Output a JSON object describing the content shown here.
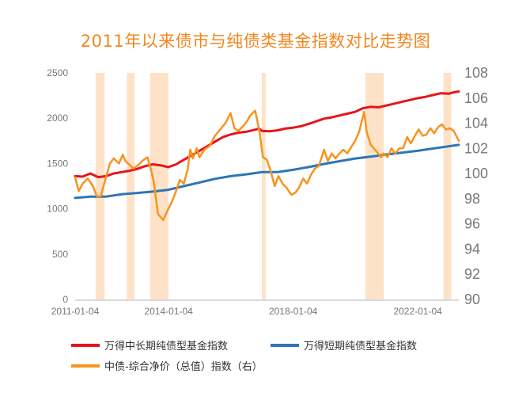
{
  "chart_data": {
    "type": "line",
    "title": "2011年以来债市与纯债类基金指数对比走势图",
    "x_ticks": [
      "2011-01-04",
      "2014-01-04",
      "2018-01-04",
      "2022-01-04"
    ],
    "x_range": [
      "2011-01-04",
      "2023-04-30"
    ],
    "y_left": {
      "ylim": [
        0,
        2500
      ],
      "ticks": [
        0,
        500,
        1000,
        1500,
        2000,
        2500
      ]
    },
    "y_right": {
      "ylim": [
        90,
        108
      ],
      "ticks": [
        90,
        92,
        94,
        96,
        98,
        100,
        102,
        104,
        106,
        108
      ]
    },
    "grid": false,
    "legend_position": "bottom",
    "shaded_periods": [
      [
        "2011-09-01",
        "2011-12-15"
      ],
      [
        "2012-09-01",
        "2012-12-01"
      ],
      [
        "2013-06-01",
        "2014-01-01"
      ],
      [
        "2017-01-01",
        "2017-02-15"
      ],
      [
        "2020-05-01",
        "2020-12-01"
      ],
      [
        "2022-11-01",
        "2023-02-01"
      ]
    ],
    "series": [
      {
        "name": "万得中长期纯债型基金指数",
        "axis": "left",
        "color": "#e8141b",
        "points": [
          [
            "2011-01-04",
            1360
          ],
          [
            "2011-04-01",
            1355
          ],
          [
            "2011-07-01",
            1390
          ],
          [
            "2011-10-01",
            1350
          ],
          [
            "2012-01-01",
            1360
          ],
          [
            "2012-04-01",
            1390
          ],
          [
            "2012-07-01",
            1405
          ],
          [
            "2012-10-01",
            1420
          ],
          [
            "2013-01-01",
            1440
          ],
          [
            "2013-04-01",
            1470
          ],
          [
            "2013-07-01",
            1490
          ],
          [
            "2013-10-01",
            1480
          ],
          [
            "2014-01-01",
            1460
          ],
          [
            "2014-04-01",
            1490
          ],
          [
            "2014-07-01",
            1540
          ],
          [
            "2014-10-01",
            1590
          ],
          [
            "2015-01-01",
            1640
          ],
          [
            "2015-04-01",
            1690
          ],
          [
            "2015-07-01",
            1740
          ],
          [
            "2015-10-01",
            1790
          ],
          [
            "2016-01-01",
            1820
          ],
          [
            "2016-04-01",
            1840
          ],
          [
            "2016-07-01",
            1850
          ],
          [
            "2016-10-01",
            1870
          ],
          [
            "2016-12-01",
            1885
          ],
          [
            "2017-01-01",
            1860
          ],
          [
            "2017-04-01",
            1855
          ],
          [
            "2017-07-01",
            1865
          ],
          [
            "2017-10-01",
            1885
          ],
          [
            "2018-01-01",
            1895
          ],
          [
            "2018-04-01",
            1910
          ],
          [
            "2018-07-01",
            1935
          ],
          [
            "2018-10-01",
            1965
          ],
          [
            "2019-01-01",
            1995
          ],
          [
            "2019-04-01",
            2010
          ],
          [
            "2019-07-01",
            2030
          ],
          [
            "2019-10-01",
            2050
          ],
          [
            "2020-01-01",
            2070
          ],
          [
            "2020-04-01",
            2110
          ],
          [
            "2020-07-01",
            2125
          ],
          [
            "2020-10-01",
            2120
          ],
          [
            "2021-01-01",
            2140
          ],
          [
            "2021-04-01",
            2160
          ],
          [
            "2021-07-01",
            2180
          ],
          [
            "2021-10-01",
            2200
          ],
          [
            "2022-01-01",
            2220
          ],
          [
            "2022-04-01",
            2235
          ],
          [
            "2022-07-01",
            2255
          ],
          [
            "2022-10-01",
            2275
          ],
          [
            "2023-01-01",
            2270
          ],
          [
            "2023-03-01",
            2285
          ],
          [
            "2023-04-30",
            2295
          ]
        ]
      },
      {
        "name": "万得短期纯债型基金指数",
        "axis": "left",
        "color": "#2e75b6",
        "points": [
          [
            "2011-01-04",
            1120
          ],
          [
            "2011-07-01",
            1135
          ],
          [
            "2012-01-01",
            1135
          ],
          [
            "2012-07-01",
            1160
          ],
          [
            "2013-01-01",
            1175
          ],
          [
            "2013-07-01",
            1190
          ],
          [
            "2014-01-01",
            1210
          ],
          [
            "2014-07-01",
            1250
          ],
          [
            "2015-01-01",
            1290
          ],
          [
            "2015-07-01",
            1330
          ],
          [
            "2016-01-01",
            1360
          ],
          [
            "2016-07-01",
            1380
          ],
          [
            "2017-01-01",
            1405
          ],
          [
            "2017-07-01",
            1405
          ],
          [
            "2018-01-01",
            1430
          ],
          [
            "2018-07-01",
            1460
          ],
          [
            "2019-01-01",
            1495
          ],
          [
            "2019-07-01",
            1525
          ],
          [
            "2020-01-01",
            1555
          ],
          [
            "2020-07-01",
            1575
          ],
          [
            "2021-01-01",
            1600
          ],
          [
            "2021-07-01",
            1620
          ],
          [
            "2022-01-01",
            1640
          ],
          [
            "2022-07-01",
            1665
          ],
          [
            "2023-01-01",
            1690
          ],
          [
            "2023-04-30",
            1705
          ]
        ]
      },
      {
        "name": "中债-综合净价（总值）指数（右）",
        "axis": "right",
        "color": "#f7931e",
        "points": [
          [
            "2011-01-04",
            99.7
          ],
          [
            "2011-02-15",
            98.6
          ],
          [
            "2011-04-01",
            99.2
          ],
          [
            "2011-06-01",
            99.6
          ],
          [
            "2011-08-01",
            99.0
          ],
          [
            "2011-09-15",
            98.2
          ],
          [
            "2011-11-01",
            98.2
          ],
          [
            "2011-12-15",
            99.3
          ],
          [
            "2012-02-15",
            100.8
          ],
          [
            "2012-04-01",
            101.2
          ],
          [
            "2012-06-01",
            100.8
          ],
          [
            "2012-07-15",
            101.5
          ],
          [
            "2012-08-15",
            101.0
          ],
          [
            "2012-10-01",
            100.7
          ],
          [
            "2012-11-15",
            100.4
          ],
          [
            "2013-01-01",
            100.6
          ],
          [
            "2013-03-01",
            101.0
          ],
          [
            "2013-05-01",
            101.3
          ],
          [
            "2013-06-15",
            100.2
          ],
          [
            "2013-07-15",
            99.3
          ],
          [
            "2013-09-01",
            96.8
          ],
          [
            "2013-11-01",
            96.3
          ],
          [
            "2014-01-01",
            97.2
          ],
          [
            "2014-02-15",
            97.8
          ],
          [
            "2014-04-01",
            98.6
          ],
          [
            "2014-05-15",
            99.5
          ],
          [
            "2014-07-01",
            99.2
          ],
          [
            "2014-08-15",
            100.3
          ],
          [
            "2014-09-15",
            101.9
          ],
          [
            "2014-10-15",
            101.2
          ],
          [
            "2014-12-01",
            102.0
          ],
          [
            "2015-01-01",
            101.3
          ],
          [
            "2015-03-01",
            101.9
          ],
          [
            "2015-05-01",
            102.2
          ],
          [
            "2015-07-01",
            103.0
          ],
          [
            "2015-09-01",
            103.5
          ],
          [
            "2015-11-01",
            104.0
          ],
          [
            "2016-01-01",
            104.8
          ],
          [
            "2016-02-15",
            103.6
          ],
          [
            "2016-04-01",
            103.4
          ],
          [
            "2016-06-01",
            103.8
          ],
          [
            "2016-07-15",
            104.2
          ],
          [
            "2016-08-15",
            104.6
          ],
          [
            "2016-10-15",
            105.0
          ],
          [
            "2016-12-01",
            103.5
          ],
          [
            "2017-01-15",
            101.3
          ],
          [
            "2017-03-01",
            101.1
          ],
          [
            "2017-04-15",
            100.2
          ],
          [
            "2017-06-01",
            99.0
          ],
          [
            "2017-07-15",
            99.8
          ],
          [
            "2017-09-01",
            99.2
          ],
          [
            "2017-10-15",
            98.9
          ],
          [
            "2017-12-15",
            98.3
          ],
          [
            "2018-02-01",
            98.5
          ],
          [
            "2018-03-15",
            98.9
          ],
          [
            "2018-05-01",
            99.6
          ],
          [
            "2018-06-15",
            99.2
          ],
          [
            "2018-08-01",
            99.9
          ],
          [
            "2018-09-15",
            100.4
          ],
          [
            "2018-11-01",
            100.6
          ],
          [
            "2019-01-01",
            101.9
          ],
          [
            "2019-02-15",
            101.0
          ],
          [
            "2019-04-01",
            101.6
          ],
          [
            "2019-05-15",
            101.2
          ],
          [
            "2019-07-01",
            101.6
          ],
          [
            "2019-08-15",
            101.9
          ],
          [
            "2019-10-01",
            101.6
          ],
          [
            "2019-11-15",
            102.1
          ],
          [
            "2020-01-01",
            102.6
          ],
          [
            "2020-02-15",
            103.3
          ],
          [
            "2020-04-15",
            104.9
          ],
          [
            "2020-05-15",
            103.3
          ],
          [
            "2020-07-01",
            102.3
          ],
          [
            "2020-09-01",
            101.8
          ],
          [
            "2020-11-01",
            101.3
          ],
          [
            "2020-12-01",
            101.6
          ],
          [
            "2021-01-15",
            101.3
          ],
          [
            "2021-03-01",
            102.0
          ],
          [
            "2021-04-15",
            101.6
          ],
          [
            "2021-06-01",
            102.0
          ],
          [
            "2021-07-15",
            102.0
          ],
          [
            "2021-09-01",
            102.9
          ],
          [
            "2021-10-15",
            102.4
          ],
          [
            "2021-12-01",
            103.0
          ],
          [
            "2022-01-15",
            103.5
          ],
          [
            "2022-03-01",
            103.0
          ],
          [
            "2022-04-15",
            103.1
          ],
          [
            "2022-06-01",
            103.6
          ],
          [
            "2022-07-15",
            103.2
          ],
          [
            "2022-09-01",
            103.7
          ],
          [
            "2022-10-15",
            103.9
          ],
          [
            "2022-12-01",
            103.5
          ],
          [
            "2023-01-15",
            103.6
          ],
          [
            "2023-03-01",
            103.4
          ],
          [
            "2023-04-30",
            102.6
          ]
        ]
      }
    ]
  }
}
